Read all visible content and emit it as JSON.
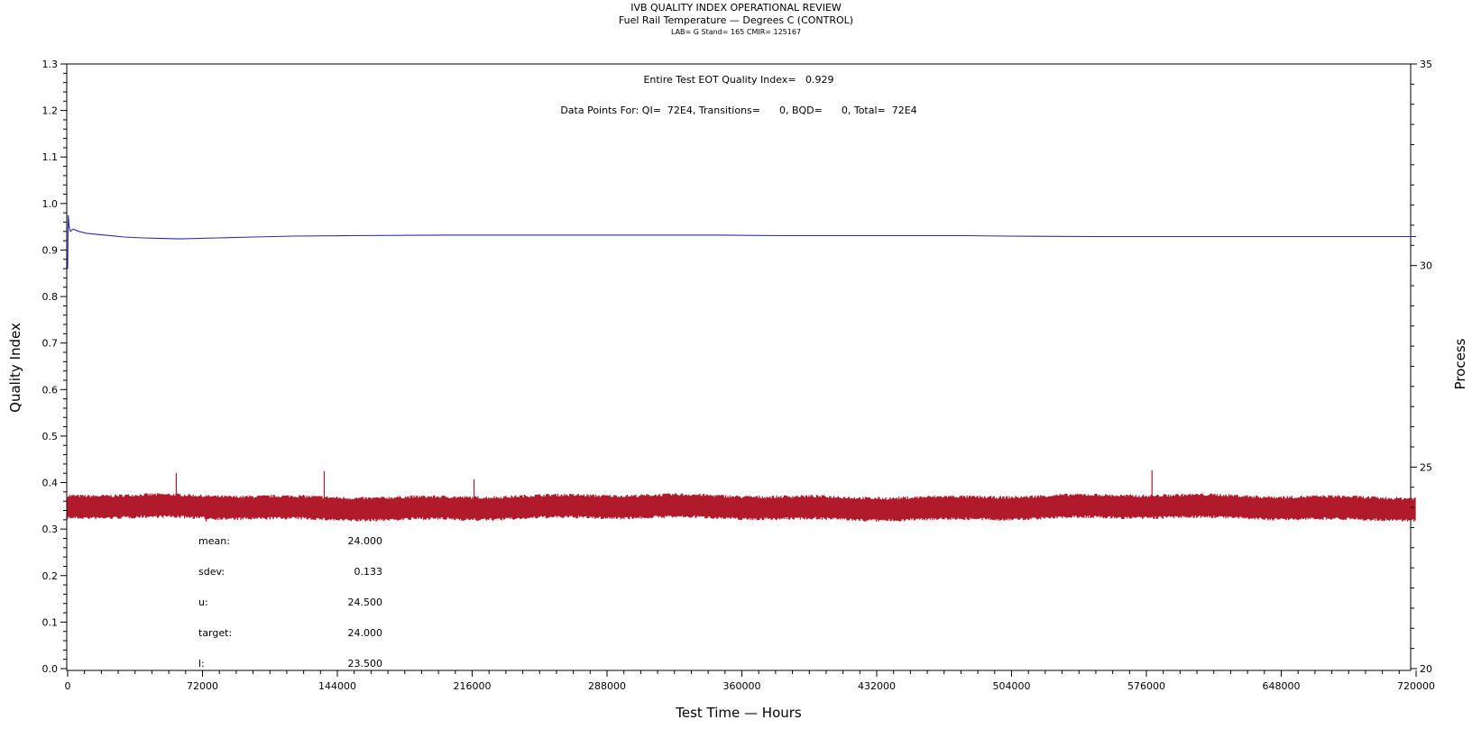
{
  "chart_data": {
    "type": "line",
    "title": "IVB QUALITY INDEX OPERATIONAL REVIEW",
    "subtitle": "Fuel Rail Temperature — Degrees C (CONTROL)",
    "subtitle2": "LAB= G Stand= 165 CMIR= 125167",
    "xlabel": "Test Time — Hours",
    "ylabel": "Quality Index",
    "y2label": "Process",
    "xlim": [
      0,
      720000
    ],
    "ylim": [
      0.0,
      1.3
    ],
    "y2lim": [
      20,
      35
    ],
    "x_ticks": [
      0,
      72000,
      144000,
      216000,
      288000,
      360000,
      432000,
      504000,
      576000,
      648000,
      720000
    ],
    "x_tick_labels": [
      "0",
      "72000",
      "144000",
      "216000",
      "288000",
      "360000",
      "432000",
      "504000",
      "576000",
      "648000",
      "720000"
    ],
    "y_ticks": [
      0.0,
      0.1,
      0.2,
      0.3,
      0.4,
      0.5,
      0.6,
      0.7,
      0.8,
      0.9,
      1.0,
      1.1,
      1.2,
      1.3
    ],
    "y_tick_labels": [
      "0.0",
      "0.1",
      "0.2",
      "0.3",
      "0.4",
      "0.5",
      "0.6",
      "0.7",
      "0.8",
      "0.9",
      "1.0",
      "1.1",
      "1.2",
      "1.3"
    ],
    "y2_ticks": [
      20,
      25,
      30,
      35
    ],
    "y2_tick_labels": [
      "20",
      "25",
      "30",
      "35"
    ],
    "series": [
      {
        "axis": "left",
        "color": "#2b2bb0",
        "x": [
          0,
          300,
          800,
          1500,
          3000,
          6000,
          10000,
          20000,
          30000,
          40000,
          50000,
          60000,
          80000,
          100000,
          120000,
          150000,
          200000,
          250000,
          300000,
          350000,
          380000,
          420000,
          450000,
          480000,
          500000,
          550000,
          600000,
          650000,
          700000,
          720000
        ],
        "y": [
          0.86,
          0.975,
          0.95,
          0.94,
          0.945,
          0.94,
          0.936,
          0.932,
          0.928,
          0.926,
          0.925,
          0.924,
          0.926,
          0.928,
          0.93,
          0.931,
          0.932,
          0.932,
          0.932,
          0.932,
          0.931,
          0.931,
          0.931,
          0.931,
          0.93,
          0.929,
          0.929,
          0.929,
          0.929,
          0.929
        ]
      },
      {
        "axis": "right",
        "color": "#b01a2a",
        "band_mean": 24.0,
        "band_halfwidth": 0.28,
        "spikes_x": [
          58000,
          137000,
          217000,
          579000,
          74000
        ],
        "spikes_y": [
          24.85,
          24.9,
          24.7,
          24.92,
          23.65
        ]
      }
    ],
    "annotations": {
      "qi_text": "Entire Test EOT Quality Index=   0.929",
      "points_text": "Data Points For: QI=  72E4, Transitions=      0, BQD=      0, Total=  72E4"
    },
    "stats": [
      {
        "label": "mean:",
        "value": "24.000"
      },
      {
        "label": "sdev:",
        "value": "0.133"
      },
      {
        "label": "u:",
        "value": "24.500"
      },
      {
        "label": "target:",
        "value": "24.000"
      },
      {
        "label": "l:",
        "value": "23.500"
      }
    ]
  }
}
